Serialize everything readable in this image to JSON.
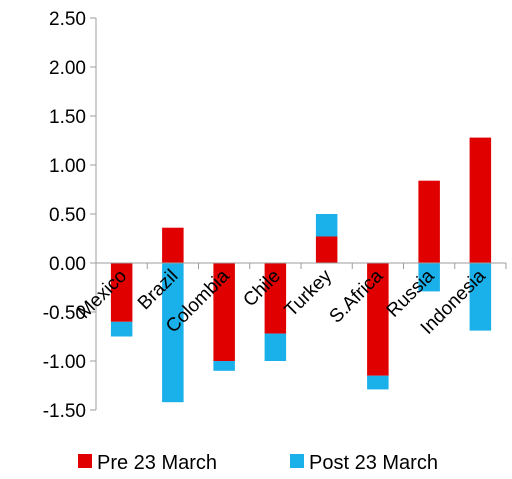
{
  "chart_data": {
    "type": "bar",
    "stacked": true,
    "categories": [
      "Mexico",
      "Brazil",
      "Colombia",
      "Chile",
      "Turkey",
      "S.Africa",
      "Russia",
      "Indonesia"
    ],
    "series": [
      {
        "name": "Pre 23 March",
        "color": "#e00000",
        "values": [
          -0.6,
          0.36,
          -1.0,
          -0.72,
          0.27,
          -1.15,
          0.84,
          1.28
        ]
      },
      {
        "name": "Post 23 March",
        "color": "#1ab0ea",
        "values": [
          -0.15,
          -1.42,
          -0.1,
          -0.28,
          0.23,
          -0.14,
          -0.29,
          -0.69
        ]
      }
    ],
    "ylim": [
      -1.5,
      2.5
    ],
    "yticks": [
      "2.50",
      "2.00",
      "1.50",
      "1.00",
      "0.50",
      "0.00",
      "-0.50",
      "-1.00",
      "-1.50"
    ],
    "ytick_values": [
      2.5,
      2.0,
      1.5,
      1.0,
      0.5,
      0.0,
      -0.5,
      -1.0,
      -1.5
    ],
    "grid": false,
    "legend_position": "bottom"
  }
}
